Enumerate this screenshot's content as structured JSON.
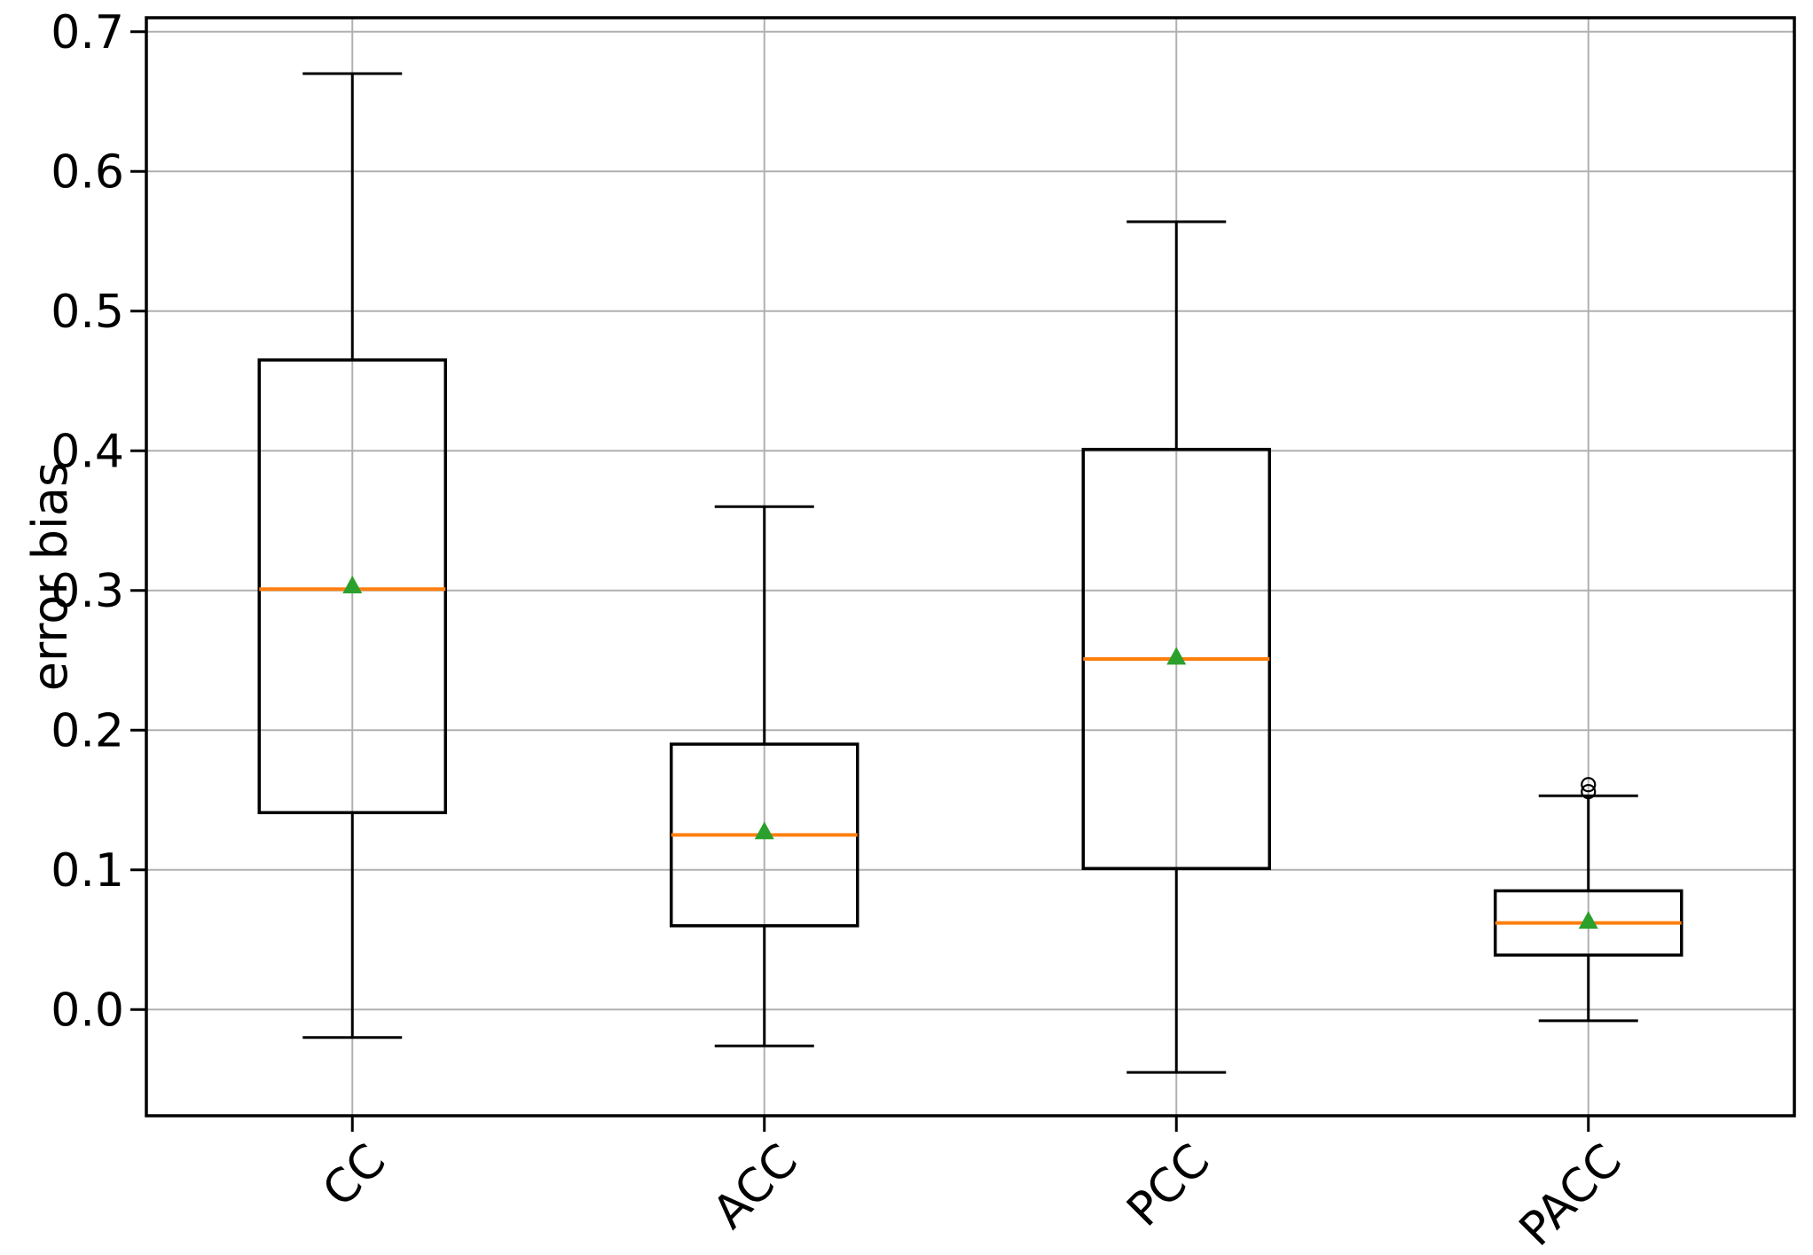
{
  "figure": {
    "background": "#ffffff"
  },
  "chart_data": {
    "type": "boxplot",
    "title": "",
    "xlabel": "",
    "ylabel": "error bias",
    "categories": [
      "CC",
      "ACC",
      "PCC",
      "PACC"
    ],
    "yticks": [
      0.0,
      0.1,
      0.2,
      0.3,
      0.4,
      0.5,
      0.6,
      0.7
    ],
    "ylim": [
      -0.076,
      0.71
    ],
    "grid": true,
    "legend": false,
    "x_tick_rotation_deg": 45,
    "mean_marker_shape": "triangle-up",
    "outlier_marker_shape": "circle",
    "colors": {
      "box": "#000000",
      "whisker": "#000000",
      "median": "#ff7f0e",
      "mean_marker": "#2ca02c",
      "outlier": "#000000",
      "grid": "#b0b0b0",
      "text": "#000000",
      "background": "#ffffff"
    },
    "series": [
      {
        "name": "CC",
        "whislo": -0.02,
        "q1": 0.141,
        "med": 0.301,
        "mean": 0.303,
        "q3": 0.465,
        "whishi": 0.67,
        "outliers": []
      },
      {
        "name": "ACC",
        "whislo": -0.026,
        "q1": 0.06,
        "med": 0.125,
        "mean": 0.127,
        "q3": 0.19,
        "whishi": 0.36,
        "outliers": []
      },
      {
        "name": "PCC",
        "whislo": -0.045,
        "q1": 0.101,
        "med": 0.251,
        "mean": 0.252,
        "q3": 0.401,
        "whishi": 0.564,
        "outliers": []
      },
      {
        "name": "PACC",
        "whislo": -0.008,
        "q1": 0.039,
        "med": 0.062,
        "mean": 0.063,
        "q3": 0.085,
        "whishi": 0.153,
        "outliers": [
          0.156,
          0.161
        ]
      }
    ]
  }
}
